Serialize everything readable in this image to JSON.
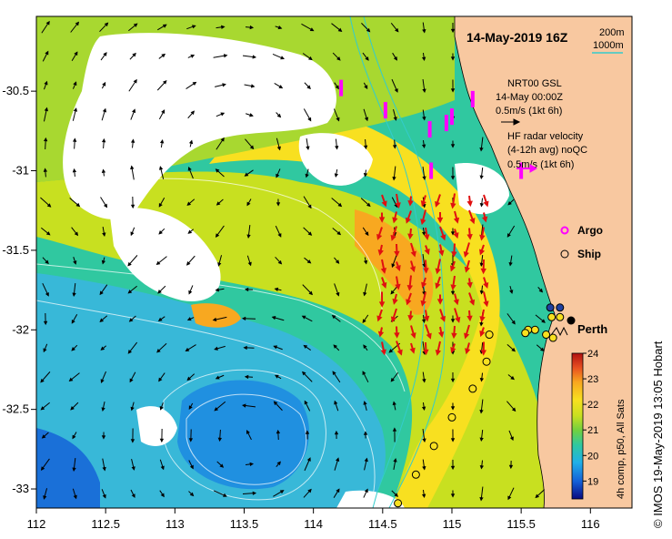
{
  "title": "14-May-2019 16Z",
  "contour_legend": {
    "items": [
      "200m",
      "1000m"
    ],
    "line_color": "#33cccc"
  },
  "annotations": {
    "gsl_model": "NRT00 GSL",
    "gsl_time": "14-May 00:00Z",
    "gsl_scale": "0.5m/s (1kt 6h)",
    "hf_title": "HF radar velocity",
    "hf_avg": "(4-12h avg) noQC",
    "hf_scale": "0.5m/s (1kt 6h)",
    "hf_arrow_color": "#ff00ff"
  },
  "legend": {
    "argo_label": "Argo",
    "argo_color": "#ff00ff",
    "ship_label": "Ship"
  },
  "place": {
    "name": "Perth",
    "lon": 115.86,
    "lat": -31.95
  },
  "axes": {
    "x_ticks": [
      "112",
      "112.5",
      "113",
      "113.5",
      "114",
      "114.5",
      "115",
      "115.5",
      "116"
    ],
    "y_ticks": [
      "-30.5",
      "-31",
      "-31.5",
      "-32",
      "-32.5",
      "-33"
    ],
    "xlim": [
      112,
      116.3
    ],
    "ylim": [
      -33.12,
      -30.03
    ]
  },
  "colorbar": {
    "ticks": [
      "19",
      "20",
      "21",
      "22",
      "23",
      "24"
    ],
    "range": [
      18.3,
      24
    ],
    "label": "4h comp, p50, All Sats",
    "colors": [
      "#0a0a80",
      "#1560d8",
      "#20b0e8",
      "#30c8a0",
      "#70d040",
      "#c8e020",
      "#f8e020",
      "#f8a820",
      "#e85020",
      "#b01010"
    ]
  },
  "land_color": "#f8c8a0",
  "credit": "© IMOS 19-May-2019 13:05 Hobart",
  "ship_stations": [
    [
      115.72,
      -31.92
    ],
    [
      115.78,
      -31.92
    ],
    [
      115.6,
      -32.0
    ],
    [
      115.55,
      -32.0
    ],
    [
      115.53,
      -32.02
    ],
    [
      115.68,
      -32.03
    ],
    [
      115.73,
      -32.05
    ],
    [
      115.27,
      -32.03
    ],
    [
      115.25,
      -32.2
    ],
    [
      115.15,
      -32.37
    ],
    [
      115.0,
      -32.55
    ],
    [
      114.87,
      -32.73
    ],
    [
      114.74,
      -32.91
    ],
    [
      114.61,
      -33.09
    ]
  ],
  "dark_stations": [
    [
      115.78,
      -31.86
    ],
    [
      115.71,
      -31.86
    ]
  ],
  "argo_points": [
    [
      114.2,
      -30.48
    ],
    [
      114.52,
      -30.62
    ],
    [
      114.84,
      -30.74
    ],
    [
      114.85,
      -31.0
    ],
    [
      114.96,
      -30.7
    ],
    [
      115.0,
      -30.66
    ],
    [
      115.15,
      -30.55
    ],
    [
      115.5,
      -31.0
    ]
  ]
}
